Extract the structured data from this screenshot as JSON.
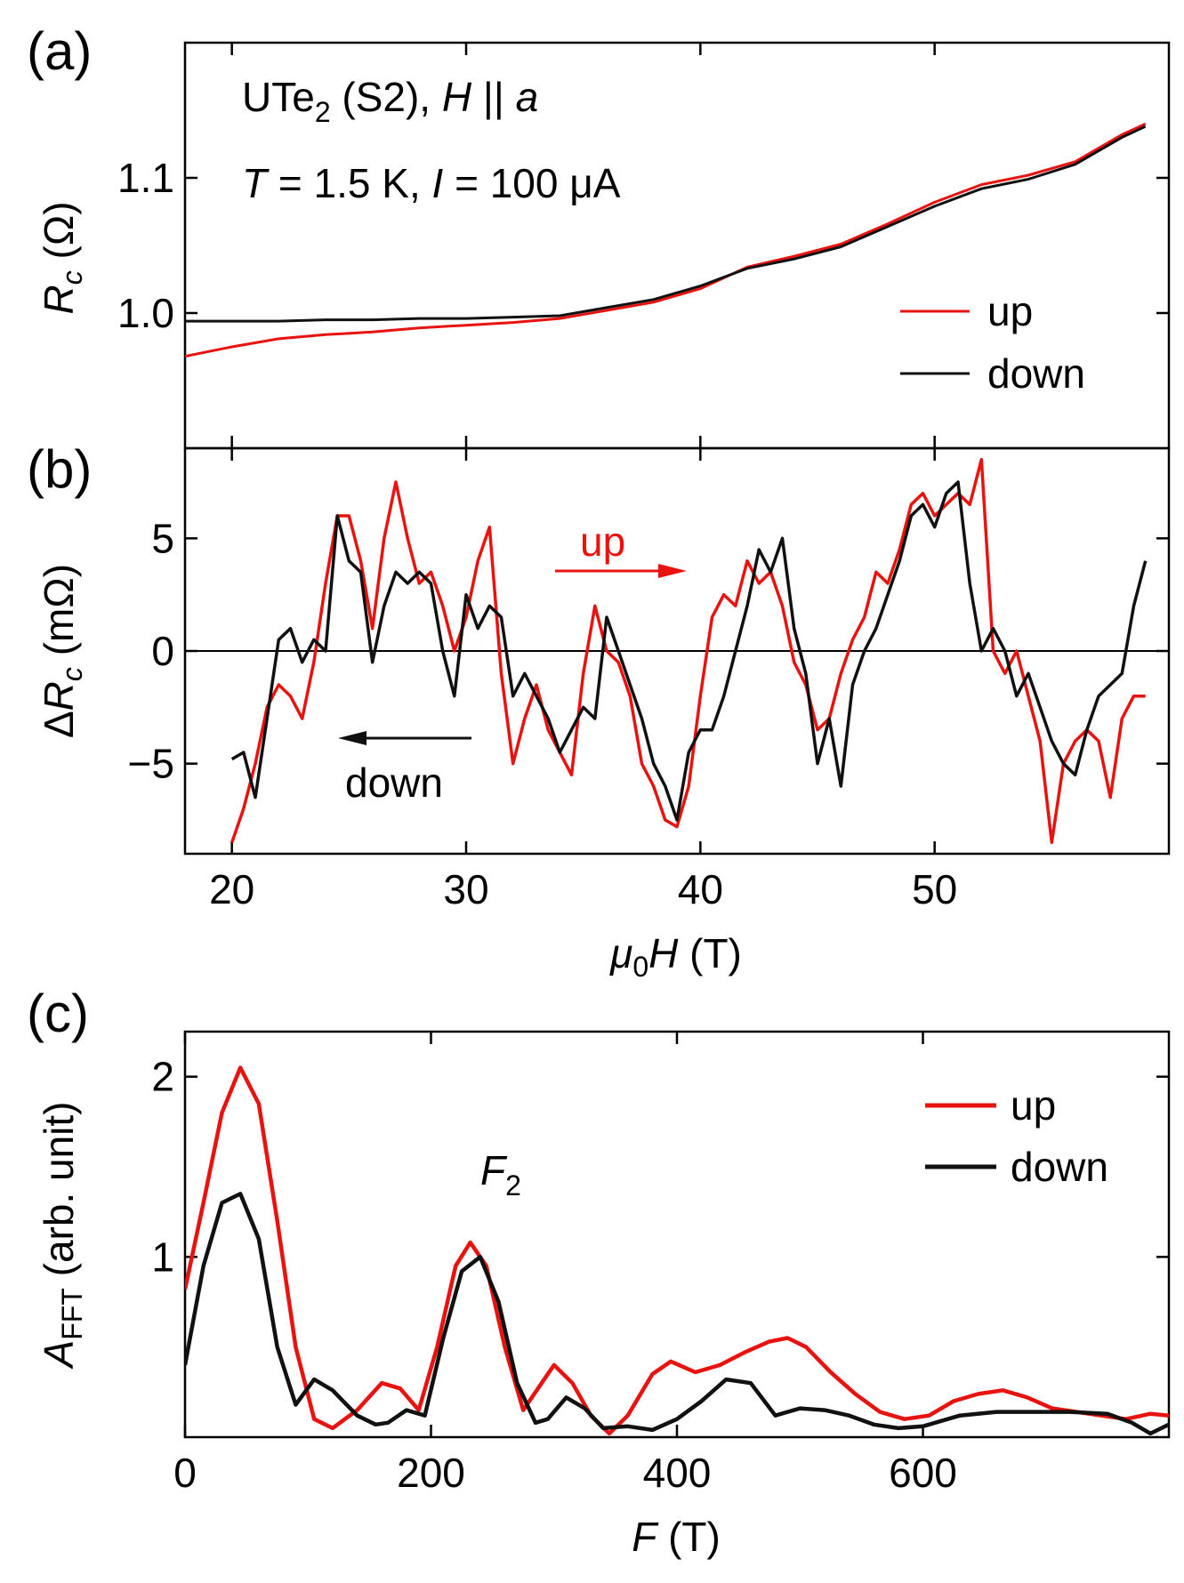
{
  "colors": {
    "up": "#e8130f",
    "down": "#111111"
  },
  "chart_data": [
    {
      "panel": "(a)",
      "type": "line",
      "annotation_line1": {
        "prefix": "UTe",
        "sub": "2",
        "mid": " (S2), ",
        "italic1": "H",
        "bars": " || ",
        "italic2": "a"
      },
      "annotation_line2": {
        "t": "T",
        "t_text": " = 1.5 K, ",
        "i": "I",
        "i_text": " = 100 μA"
      },
      "ylabel": {
        "main": "R",
        "sub": "c",
        "unit": " (Ω)"
      },
      "xlim": [
        18,
        60
      ],
      "ylim": [
        0.9,
        1.2
      ],
      "yticks": [
        1.0,
        1.1
      ],
      "ytick_labels": [
        "1.0",
        "1.1"
      ],
      "legend": [
        {
          "name": "up"
        },
        {
          "name": "down"
        }
      ],
      "series": [
        {
          "name": "up",
          "x": [
            18,
            20,
            22,
            24,
            26,
            28,
            30,
            32,
            34,
            36,
            38,
            40,
            42,
            44,
            46,
            48,
            50,
            52,
            54,
            56,
            58,
            59
          ],
          "y": [
            0.968,
            0.975,
            0.981,
            0.984,
            0.986,
            0.989,
            0.991,
            0.993,
            0.996,
            1.002,
            1.008,
            1.018,
            1.034,
            1.042,
            1.051,
            1.066,
            1.082,
            1.095,
            1.102,
            1.112,
            1.132,
            1.14
          ]
        },
        {
          "name": "down",
          "x": [
            18,
            20,
            22,
            24,
            26,
            28,
            30,
            32,
            34,
            36,
            38,
            40,
            42,
            44,
            46,
            48,
            50,
            52,
            54,
            56,
            58,
            59
          ],
          "y": [
            0.994,
            0.994,
            0.994,
            0.995,
            0.995,
            0.996,
            0.996,
            0.997,
            0.998,
            1.004,
            1.01,
            1.02,
            1.033,
            1.04,
            1.049,
            1.064,
            1.079,
            1.092,
            1.099,
            1.11,
            1.13,
            1.138
          ]
        }
      ]
    },
    {
      "panel": "(b)",
      "type": "line",
      "ylabel": {
        "delta": "Δ",
        "main": "R",
        "sub": "c",
        "unit": " (mΩ)"
      },
      "xlabel": {
        "mu": "μ",
        "sub": "0",
        "h": "H",
        "unit": " (T)"
      },
      "xlim": [
        18,
        60
      ],
      "ylim": [
        -9,
        9
      ],
      "xticks": [
        20,
        30,
        40,
        50
      ],
      "xtick_labels": [
        "20",
        "30",
        "40",
        "50"
      ],
      "yticks": [
        -5,
        0,
        5
      ],
      "ytick_labels": [
        "−5",
        "0",
        "5"
      ],
      "arrow_up_label": "up",
      "arrow_down_label": "down",
      "series": [
        {
          "name": "up",
          "x": [
            20,
            20.5,
            21,
            21.5,
            22,
            22.5,
            23,
            23.5,
            24,
            24.5,
            25,
            25.5,
            26,
            26.5,
            27,
            27.5,
            28,
            28.5,
            29,
            29.5,
            30,
            30.5,
            31,
            31.5,
            32,
            32.5,
            33,
            33.5,
            34,
            34.5,
            35,
            35.5,
            36,
            36.5,
            37,
            37.5,
            38,
            38.5,
            39,
            39.5,
            40,
            40.5,
            41,
            41.5,
            42,
            42.5,
            43,
            43.5,
            44,
            44.5,
            45,
            45.5,
            46,
            46.5,
            47,
            47.5,
            48,
            48.5,
            49,
            49.5,
            50,
            50.5,
            51,
            51.5,
            52,
            52.5,
            53,
            53.5,
            54,
            54.5,
            55,
            55.5,
            56,
            56.5,
            57,
            57.5,
            58,
            58.5,
            59
          ],
          "y": [
            -8.5,
            -7,
            -5,
            -2.5,
            -1.5,
            -2,
            -3,
            -0.5,
            3,
            6,
            6,
            4,
            1,
            5,
            7.5,
            5,
            3,
            3.5,
            2,
            0,
            1.5,
            4,
            5.5,
            -1,
            -5,
            -3,
            -1.5,
            -3.5,
            -4.5,
            -5.5,
            -1,
            2,
            0,
            -0.5,
            -2,
            -5,
            -6,
            -7.5,
            -7.8,
            -6,
            -2,
            1.5,
            2.5,
            2,
            4,
            3,
            3.5,
            2,
            -0.5,
            -1.5,
            -3.5,
            -3,
            -1,
            0.5,
            1.5,
            3.5,
            3,
            4.5,
            6.5,
            7,
            6,
            6.5,
            7,
            6.5,
            8.5,
            0,
            -1,
            0,
            -2,
            -4,
            -8.5,
            -5,
            -4,
            -3.5,
            -4,
            -6.5,
            -3,
            -2,
            -2
          ]
        },
        {
          "name": "down",
          "x": [
            20,
            20.5,
            21,
            21.5,
            22,
            22.5,
            23,
            23.5,
            24,
            24.5,
            25,
            25.5,
            26,
            26.5,
            27,
            27.5,
            28,
            28.5,
            29,
            29.5,
            30,
            30.5,
            31,
            31.5,
            32,
            32.5,
            33,
            33.5,
            34,
            34.5,
            35,
            35.5,
            36,
            36.5,
            37,
            37.5,
            38,
            38.5,
            39,
            39.5,
            40,
            40.5,
            41,
            41.5,
            42,
            42.5,
            43,
            43.5,
            44,
            44.5,
            45,
            45.5,
            46,
            46.5,
            47,
            47.5,
            48,
            48.5,
            49,
            49.5,
            50,
            50.5,
            51,
            51.5,
            52,
            52.5,
            53,
            53.5,
            54,
            54.5,
            55,
            55.5,
            56,
            56.5,
            57,
            57.5,
            58,
            58.5,
            59
          ],
          "y": [
            -4.8,
            -4.5,
            -6.5,
            -3,
            0.5,
            1,
            -0.5,
            0.5,
            0,
            6,
            4,
            3.5,
            -0.5,
            2,
            3.5,
            3,
            3.5,
            3,
            0,
            -2,
            2.5,
            1,
            2,
            1.5,
            -2,
            -1,
            -2,
            -3,
            -4.5,
            -3.5,
            -2.5,
            -3,
            1.5,
            0,
            -1.5,
            -3,
            -5,
            -6,
            -7.5,
            -4.5,
            -3.5,
            -3.5,
            -2,
            0,
            2,
            4.5,
            3.5,
            5,
            1,
            -1,
            -5,
            -3,
            -6,
            -1.5,
            0,
            1,
            2.5,
            4,
            6,
            6.5,
            5.5,
            7,
            7.5,
            3,
            0,
            1,
            0,
            -2,
            -1,
            -2.5,
            -4,
            -5,
            -5.5,
            -3.5,
            -2,
            -1.5,
            -1,
            2,
            4
          ]
        }
      ]
    },
    {
      "panel": "(c)",
      "type": "line",
      "annotation": {
        "f": "F",
        "sub": "2"
      },
      "ylabel": {
        "main": "A",
        "sub": "FFT",
        "unit": " (arb. unit)"
      },
      "xlabel": {
        "f": "F",
        "unit": " (T)"
      },
      "xlim": [
        0,
        800
      ],
      "ylim": [
        0,
        2.25
      ],
      "xticks": [
        0,
        200,
        400,
        600
      ],
      "xtick_labels": [
        "0",
        "200",
        "400",
        "600"
      ],
      "yticks": [
        1,
        2
      ],
      "ytick_labels": [
        "1",
        "2"
      ],
      "legend": [
        {
          "name": "up"
        },
        {
          "name": "down"
        }
      ],
      "series": [
        {
          "name": "up",
          "x": [
            0,
            15,
            30,
            45,
            60,
            75,
            90,
            105,
            120,
            140,
            160,
            175,
            190,
            205,
            220,
            232,
            245,
            260,
            275,
            290,
            300,
            315,
            330,
            345,
            360,
            380,
            395,
            415,
            435,
            455,
            475,
            490,
            505,
            525,
            545,
            565,
            585,
            605,
            625,
            645,
            665,
            685,
            705,
            725,
            745,
            765,
            785,
            800
          ],
          "y": [
            0.82,
            1.3,
            1.8,
            2.05,
            1.85,
            1.2,
            0.5,
            0.1,
            0.05,
            0.15,
            0.3,
            0.27,
            0.15,
            0.5,
            0.95,
            1.08,
            0.95,
            0.5,
            0.15,
            0.3,
            0.4,
            0.3,
            0.12,
            0.02,
            0.12,
            0.35,
            0.42,
            0.36,
            0.4,
            0.47,
            0.53,
            0.55,
            0.5,
            0.36,
            0.24,
            0.14,
            0.1,
            0.12,
            0.2,
            0.24,
            0.26,
            0.22,
            0.16,
            0.14,
            0.12,
            0.1,
            0.13,
            0.12
          ]
        },
        {
          "name": "down",
          "x": [
            0,
            15,
            30,
            45,
            60,
            75,
            90,
            105,
            120,
            140,
            155,
            165,
            180,
            195,
            210,
            225,
            240,
            255,
            270,
            285,
            295,
            310,
            325,
            340,
            360,
            380,
            400,
            420,
            440,
            460,
            480,
            500,
            520,
            540,
            560,
            580,
            600,
            630,
            660,
            690,
            720,
            750,
            770,
            785,
            800
          ],
          "y": [
            0.4,
            0.95,
            1.3,
            1.35,
            1.1,
            0.5,
            0.18,
            0.32,
            0.26,
            0.12,
            0.07,
            0.08,
            0.15,
            0.12,
            0.55,
            0.92,
            1.0,
            0.75,
            0.3,
            0.08,
            0.1,
            0.22,
            0.16,
            0.05,
            0.06,
            0.04,
            0.1,
            0.2,
            0.32,
            0.3,
            0.12,
            0.16,
            0.15,
            0.12,
            0.07,
            0.05,
            0.06,
            0.12,
            0.14,
            0.14,
            0.14,
            0.13,
            0.08,
            0.02,
            0.07
          ]
        }
      ]
    }
  ]
}
